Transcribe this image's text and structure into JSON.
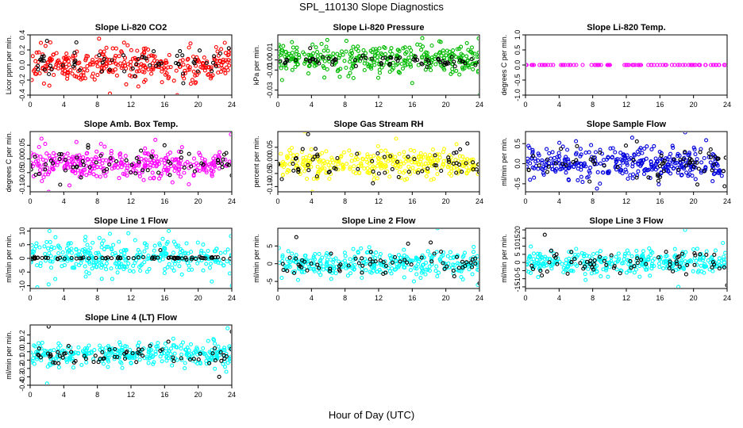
{
  "figure": {
    "title": "SPL_110130  Slope Diagnostics",
    "xlabel": "Hour of Day (UTC)"
  },
  "chart_data": [
    {
      "type": "scatter",
      "title": "Slope Li-820 CO2",
      "ylabel": "Licor ppm per min.",
      "xlim": [
        0,
        24
      ],
      "ylim": [
        -0.4,
        0.4
      ],
      "xticks": [
        0,
        4,
        8,
        12,
        16,
        20,
        24
      ],
      "yticks": [
        -0.4,
        -0.2,
        0.0,
        0.2,
        0.4
      ],
      "ytick_labels": [
        "-0.4",
        "-0.2",
        "0.0",
        "0.2",
        "0.4"
      ],
      "colors": {
        "main": "#ff0000",
        "highlight": "#000000"
      },
      "series": [
        {
          "color": "main",
          "x_range": [
            0,
            24
          ],
          "center": 0.0,
          "spread": 0.11,
          "count": 320,
          "outliers": [
            [
              17.5,
              -0.4
            ],
            [
              9.5,
              -0.38
            ],
            [
              21.5,
              0.42
            ],
            [
              8.2,
              0.35
            ]
          ]
        },
        {
          "color": "highlight",
          "x_range": [
            0,
            24
          ],
          "center": 0.02,
          "spread": 0.09,
          "count": 60,
          "outliers": [
            [
              2,
              0.32
            ],
            [
              5.5,
              0.3
            ]
          ]
        }
      ]
    },
    {
      "type": "scatter",
      "title": "Slope Li-820 Pressure",
      "ylabel": "kPa per min.",
      "xlim": [
        0,
        24
      ],
      "ylim": [
        -0.035,
        0.025
      ],
      "xticks": [
        0,
        4,
        8,
        12,
        16,
        20,
        24
      ],
      "yticks": [
        -0.03,
        -0.01,
        0.0,
        0.01
      ],
      "ytick_labels": [
        "-0.03",
        "-0.01",
        "0.00",
        "0.01"
      ],
      "colors": {
        "main": "#00bb00",
        "highlight": "#000000"
      },
      "series": [
        {
          "color": "main",
          "x_range": [
            0,
            24
          ],
          "center": 0.001,
          "spread": 0.007,
          "count": 340,
          "outliers": [
            [
              0.5,
              -0.02
            ],
            [
              16,
              -0.023
            ],
            [
              24,
              -0.035
            ],
            [
              9,
              -0.018
            ]
          ]
        },
        {
          "color": "highlight",
          "x_range": [
            0,
            24
          ],
          "center": -0.001,
          "spread": 0.003,
          "count": 70,
          "outliers": []
        }
      ]
    },
    {
      "type": "scatter",
      "title": "Slope Li-820 Temp.",
      "ylabel": "degrees C per min.",
      "xlim": [
        0,
        24
      ],
      "ylim": [
        -1.0,
        1.0
      ],
      "xticks": [
        0,
        4,
        8,
        12,
        16,
        20,
        24
      ],
      "yticks": [
        -1.0,
        -0.5,
        0.0,
        0.5,
        1.0
      ],
      "ytick_labels": [
        "-1.0",
        "-0.5",
        "0.0",
        "0.5",
        "1.0"
      ],
      "colors": {
        "main": "#ff00ff",
        "highlight": "#000000"
      },
      "series": [
        {
          "color": "main",
          "x_range": [
            0,
            24
          ],
          "center": 0.0,
          "spread": 0.0,
          "count": 90,
          "outliers": []
        }
      ]
    },
    {
      "type": "scatter",
      "title": "Slope Amb. Box Temp.",
      "ylabel": "degrees C per min.",
      "xlim": [
        0,
        24
      ],
      "ylim": [
        -0.12,
        0.1
      ],
      "xticks": [
        0,
        4,
        8,
        12,
        16,
        20,
        24
      ],
      "yticks": [
        -0.1,
        -0.05,
        0.0,
        0.05
      ],
      "ytick_labels": [
        "-0.10",
        "-0.05",
        "0.00",
        "0.05"
      ],
      "colors": {
        "main": "#ff00ff",
        "highlight": "#000000"
      },
      "series": [
        {
          "color": "main",
          "x_range": [
            0,
            24
          ],
          "center": -0.02,
          "spread": 0.028,
          "count": 320,
          "outliers": [
            [
              2.2,
              -0.12
            ],
            [
              23.9,
              0.09
            ],
            [
              14.9,
              0.07
            ]
          ]
        },
        {
          "color": "highlight",
          "x_range": [
            0,
            24
          ],
          "center": -0.02,
          "spread": 0.025,
          "count": 65,
          "outliers": [
            [
              16,
              0.05
            ],
            [
              24,
              -0.06
            ]
          ]
        }
      ]
    },
    {
      "type": "scatter",
      "title": "Slope Gas Stream RH",
      "ylabel": "percent per min.",
      "xlim": [
        0,
        24
      ],
      "ylim": [
        -0.12,
        0.11
      ],
      "xticks": [
        0,
        4,
        8,
        12,
        16,
        20,
        24
      ],
      "yticks": [
        -0.1,
        -0.05,
        0.0,
        0.05
      ],
      "ytick_labels": [
        "-0.10",
        "-0.05",
        "0.00",
        "0.05"
      ],
      "colors": {
        "main": "#ffff00",
        "highlight": "#000000"
      },
      "series": [
        {
          "color": "main",
          "x_range": [
            0,
            24
          ],
          "center": -0.015,
          "spread": 0.025,
          "count": 320,
          "outliers": [
            [
              3.2,
              0.11
            ],
            [
              4.1,
              -0.12
            ]
          ]
        },
        {
          "color": "highlight",
          "x_range": [
            0,
            24
          ],
          "center": -0.015,
          "spread": 0.03,
          "count": 65,
          "outliers": [
            [
              3.6,
              0.1
            ]
          ]
        }
      ]
    },
    {
      "type": "scatter",
      "title": "Slope Sample Flow",
      "ylabel": "ml/min per min.",
      "xlim": [
        0,
        24
      ],
      "ylim": [
        -0.7,
        0.8
      ],
      "xticks": [
        0,
        4,
        8,
        12,
        16,
        20,
        24
      ],
      "yticks": [
        -0.5,
        0.0,
        0.5
      ],
      "ytick_labels": [
        "-0.5",
        "0.0",
        "0.5"
      ],
      "colors": {
        "main": "#0000dd",
        "highlight": "#000000"
      },
      "series": [
        {
          "color": "main",
          "x_range": [
            0,
            24
          ],
          "center": 0.0,
          "spread": 0.2,
          "count": 340,
          "outliers": [
            [
              8.5,
              -0.62
            ],
            [
              19,
              0.78
            ]
          ]
        },
        {
          "color": "highlight",
          "x_range": [
            0,
            24
          ],
          "center": 0.0,
          "spread": 0.25,
          "count": 65,
          "outliers": []
        }
      ]
    },
    {
      "type": "scatter",
      "title": "Slope Line 1 Flow",
      "ylabel": "ml/min per min.",
      "xlim": [
        0,
        24
      ],
      "ylim": [
        -11,
        11
      ],
      "xticks": [
        0,
        4,
        8,
        12,
        16,
        20,
        24
      ],
      "yticks": [
        -10,
        -5,
        0,
        5,
        10
      ],
      "ytick_labels": [
        "-10",
        "-5",
        "0",
        "5",
        "10"
      ],
      "colors": {
        "main": "#00ffff",
        "highlight": "#000000"
      },
      "series": [
        {
          "color": "main",
          "x_range": [
            0,
            24
          ],
          "center": 0.5,
          "spread": 3.2,
          "count": 320,
          "outliers": [
            [
              2.2,
              -9.5
            ],
            [
              2.3,
              10
            ],
            [
              24,
              -10
            ],
            [
              9.5,
              9
            ],
            [
              16.5,
              10
            ]
          ]
        },
        {
          "color": "highlight",
          "x_range": [
            0,
            24
          ],
          "center": 0.1,
          "spread": 0.2,
          "count": 70,
          "outliers": [
            [
              15.5,
              3
            ]
          ]
        }
      ]
    },
    {
      "type": "scatter",
      "title": "Slope Line 2 Flow",
      "ylabel": "ml/min per min.",
      "xlim": [
        0,
        24
      ],
      "ylim": [
        -7,
        10
      ],
      "xticks": [
        0,
        4,
        8,
        12,
        16,
        20,
        24
      ],
      "yticks": [
        -5,
        0,
        5
      ],
      "ytick_labels": [
        "-5",
        "0",
        "5"
      ],
      "colors": {
        "main": "#00ffff",
        "highlight": "#000000"
      },
      "series": [
        {
          "color": "main",
          "x_range": [
            0,
            24
          ],
          "center": 0.0,
          "spread": 1.7,
          "count": 320,
          "outliers": [
            [
              19,
              10
            ],
            [
              16.2,
              -5
            ],
            [
              23.8,
              -6
            ]
          ]
        },
        {
          "color": "highlight",
          "x_range": [
            0,
            24
          ],
          "center": 0.0,
          "spread": 1.8,
          "count": 65,
          "outliers": [
            [
              2.2,
              7.5
            ],
            [
              18.2,
              6
            ],
            [
              24,
              -5.5
            ]
          ]
        }
      ]
    },
    {
      "type": "scatter",
      "title": "Slope Line 3 Flow",
      "ylabel": "ml/min per min.",
      "xlim": [
        0,
        24
      ],
      "ylim": [
        -16,
        21
      ],
      "xticks": [
        0,
        4,
        8,
        12,
        16,
        20,
        24
      ],
      "yticks": [
        -15,
        -10,
        -5,
        0,
        5,
        10,
        15,
        20
      ],
      "ytick_labels": [
        "-15",
        "-10",
        "-5",
        "0",
        "5",
        "10",
        "15",
        "20"
      ],
      "colors": {
        "main": "#00ffff",
        "highlight": "#000000"
      },
      "series": [
        {
          "color": "main",
          "x_range": [
            0,
            24
          ],
          "center": 0.0,
          "spread": 3.5,
          "count": 320,
          "outliers": [
            [
              19,
              20
            ],
            [
              23.5,
              12
            ],
            [
              1.5,
              -9
            ],
            [
              18.2,
              -15
            ]
          ]
        },
        {
          "color": "highlight",
          "x_range": [
            0,
            24
          ],
          "center": 0.0,
          "spread": 3.0,
          "count": 65,
          "outliers": [
            [
              2.3,
              17
            ],
            [
              24,
              -14
            ]
          ]
        }
      ]
    },
    {
      "type": "scatter",
      "title": "Slope Line 4 (LT) Flow",
      "ylabel": "ml/min per min.",
      "xlim": [
        0,
        24
      ],
      "ylim": [
        -0.4,
        0.32
      ],
      "xticks": [
        0,
        4,
        8,
        12,
        16,
        20,
        24
      ],
      "yticks": [
        -0.4,
        -0.3,
        -0.2,
        -0.1,
        0.0,
        0.1,
        0.2
      ],
      "ytick_labels": [
        "-0.4",
        "-0.3",
        "-0.2",
        "-0.1",
        "0.0",
        "0.1",
        "0.2"
      ],
      "colors": {
        "main": "#00ffff",
        "highlight": "#000000"
      },
      "series": [
        {
          "color": "main",
          "x_range": [
            0,
            24
          ],
          "center": -0.03,
          "spread": 0.07,
          "count": 320,
          "outliers": [
            [
              2,
              -0.38
            ],
            [
              23.5,
              0.28
            ]
          ]
        },
        {
          "color": "highlight",
          "x_range": [
            0,
            24
          ],
          "center": -0.04,
          "spread": 0.07,
          "count": 65,
          "outliers": [
            [
              2.2,
              0.3
            ],
            [
              22.5,
              -0.3
            ],
            [
              24,
              0.24
            ]
          ]
        }
      ]
    }
  ]
}
